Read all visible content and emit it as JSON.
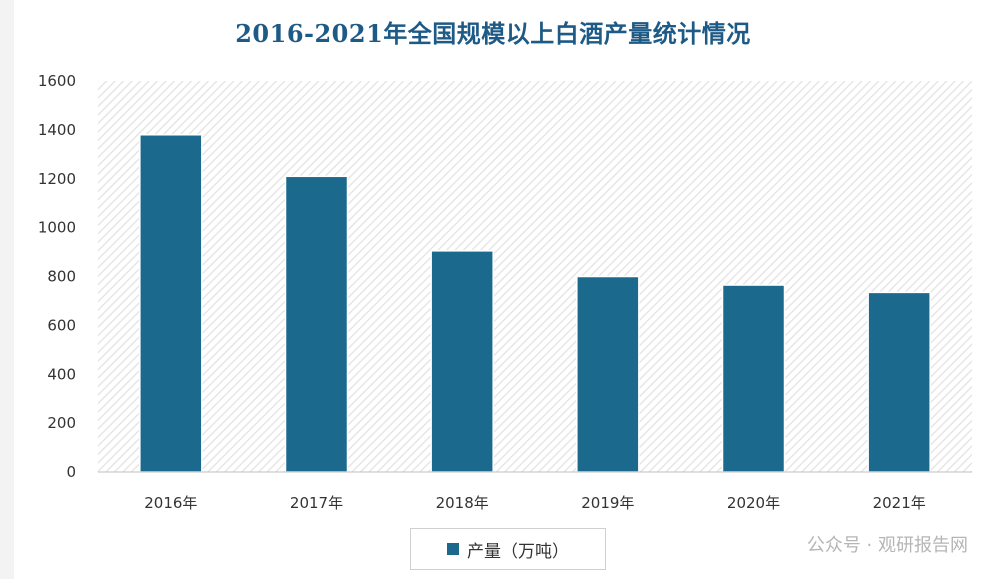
{
  "chart_data": {
    "type": "bar",
    "title": "2016-2021年全国规模以上白酒产量统计情况",
    "categories": [
      "2016年",
      "2017年",
      "2018年",
      "2019年",
      "2020年",
      "2021年"
    ],
    "series": [
      {
        "name": "产量（万吨）",
        "values": [
          1380,
          1210,
          905,
          800,
          765,
          735
        ]
      }
    ],
    "ylim": [
      0,
      1600
    ],
    "yticks": [
      0,
      200,
      400,
      600,
      800,
      1000,
      1200,
      1400,
      1600
    ],
    "bar_color": "#1b6a8e",
    "plot_background": "hatched light gray",
    "legend_position": "bottom-center",
    "grid": false
  },
  "title_color": "#1e5a86",
  "watermark": "公众号 · 观研报告网"
}
